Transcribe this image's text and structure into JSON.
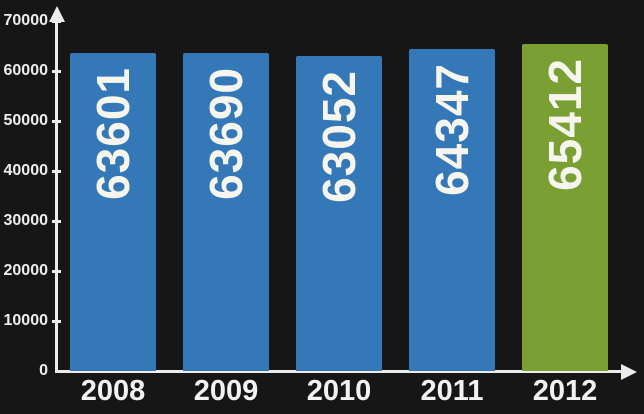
{
  "chart_data": {
    "type": "bar",
    "categories": [
      "2008",
      "2009",
      "2010",
      "2011",
      "2012"
    ],
    "values": [
      63601,
      63690,
      63052,
      64347,
      65412
    ],
    "value_labels": [
      "63601",
      "63690",
      "63052",
      "64347",
      "65412"
    ],
    "bar_colors": [
      "#3478b8",
      "#3478b8",
      "#3478b8",
      "#3478b8",
      "#7aa034"
    ],
    "y_ticks": [
      0,
      10000,
      20000,
      30000,
      40000,
      50000,
      60000,
      70000
    ],
    "y_tick_labels": [
      "0",
      "10000",
      "20000",
      "30000",
      "40000",
      "50000",
      "60000",
      "70000"
    ],
    "ylim": [
      0,
      70000
    ],
    "grid": false,
    "legend": false,
    "value_label_rotation": "vertical-bottom-to-top",
    "colors": {
      "background": "#161616",
      "axis": "#ececec",
      "bar_default": "#3478b8",
      "bar_highlight": "#7aa034",
      "value_label": "#f6f5ee",
      "tick_label": "#ededed",
      "category_label": "#f2f2f2"
    }
  }
}
